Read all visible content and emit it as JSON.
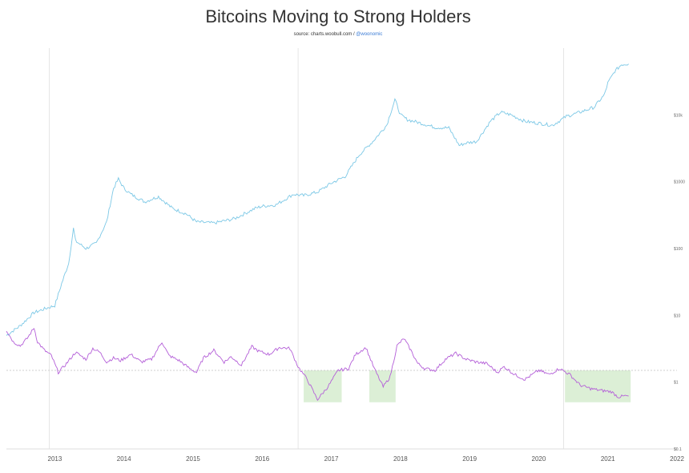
{
  "chart_data": {
    "type": "line",
    "title": "Bitcoins Moving to Strong Holders",
    "subtitle_source": "source: charts.woobull.com / ",
    "subtitle_handle": "@woonomic",
    "x_ticks": [
      "2013",
      "2014",
      "2015",
      "2016",
      "2017",
      "2018",
      "2019",
      "2020",
      "2021",
      "2022"
    ],
    "y_ticks_right": [
      {
        "label": "$10k",
        "value": 10000
      },
      {
        "label": "$1000",
        "value": 1000
      },
      {
        "label": "$100",
        "value": 100
      },
      {
        "label": "$10",
        "value": 10
      },
      {
        "label": "$1",
        "value": 1
      },
      {
        "label": "$0.1",
        "value": 0.1
      }
    ],
    "y_scale": "log",
    "ylim": [
      0.1,
      100000
    ],
    "xlim": [
      2012.3,
      2022.0
    ],
    "cycle_marker_years": [
      2012.92,
      2016.52,
      2020.36
    ],
    "grid": false,
    "colors": {
      "price": "#7cc8e6",
      "indicator": "#b45fd8",
      "highlight": "#dcefd6",
      "vline": "#e6e6e6",
      "dotted": "#c0c0c0"
    },
    "series": [
      {
        "role": "price",
        "x": [
          2012.3,
          2012.5,
          2012.7,
          2012.9,
          2013.0,
          2013.1,
          2013.2,
          2013.27,
          2013.3,
          2013.45,
          2013.6,
          2013.75,
          2013.85,
          2013.92,
          2014.0,
          2014.1,
          2014.3,
          2014.5,
          2014.7,
          2014.9,
          2015.05,
          2015.3,
          2015.6,
          2015.9,
          2016.0,
          2016.2,
          2016.45,
          2016.6,
          2016.8,
          2017.0,
          2017.2,
          2017.4,
          2017.6,
          2017.8,
          2017.92,
          2018.0,
          2018.1,
          2018.3,
          2018.5,
          2018.7,
          2018.85,
          2018.95,
          2019.1,
          2019.3,
          2019.45,
          2019.6,
          2019.8,
          2020.0,
          2020.2,
          2020.4,
          2020.6,
          2020.8,
          2020.95,
          2021.0,
          2021.1,
          2021.2,
          2021.3
        ],
        "y": [
          5,
          7,
          11,
          13,
          14,
          30,
          60,
          200,
          130,
          100,
          120,
          250,
          800,
          1100,
          800,
          650,
          500,
          600,
          400,
          330,
          250,
          240,
          280,
          400,
          430,
          450,
          650,
          620,
          700,
          950,
          1200,
          2500,
          4000,
          7000,
          17000,
          10000,
          8500,
          7500,
          6500,
          6400,
          3500,
          3800,
          4000,
          8000,
          11000,
          10000,
          8000,
          7500,
          7000,
          9500,
          11000,
          13000,
          20000,
          30000,
          45000,
          57000,
          58000
        ]
      },
      {
        "role": "indicator",
        "x": [
          2012.3,
          2012.4,
          2012.5,
          2012.6,
          2012.7,
          2012.75,
          2012.85,
          2012.95,
          2013.05,
          2013.15,
          2013.3,
          2013.45,
          2013.55,
          2013.65,
          2013.75,
          2013.85,
          2013.95,
          2014.1,
          2014.25,
          2014.4,
          2014.55,
          2014.65,
          2014.8,
          2014.95,
          2015.05,
          2015.15,
          2015.3,
          2015.45,
          2015.55,
          2015.7,
          2015.85,
          2015.95,
          2016.1,
          2016.25,
          2016.4,
          2016.52,
          2016.65,
          2016.8,
          2016.95,
          2017.1,
          2017.25,
          2017.35,
          2017.5,
          2017.62,
          2017.75,
          2017.85,
          2017.95,
          2018.05,
          2018.15,
          2018.25,
          2018.35,
          2018.5,
          2018.65,
          2018.8,
          2018.95,
          2019.1,
          2019.25,
          2019.4,
          2019.5,
          2019.65,
          2019.8,
          2020.0,
          2020.15,
          2020.3,
          2020.45,
          2020.6,
          2020.75,
          2020.9,
          2021.05,
          2021.15,
          2021.25,
          2021.3
        ],
        "y": [
          6,
          4,
          3.5,
          4.5,
          6.5,
          4,
          3,
          2.5,
          1.4,
          1.8,
          2.8,
          2.2,
          3.2,
          2.8,
          2,
          2.3,
          2.1,
          2.6,
          2,
          2.2,
          4,
          2.5,
          2.1,
          1.6,
          1.4,
          2.3,
          3,
          2,
          2.4,
          1.8,
          3.4,
          2.9,
          2.6,
          3.3,
          3.2,
          1.7,
          1.1,
          0.55,
          0.85,
          1.5,
          1.6,
          2.6,
          3.3,
          1.6,
          0.85,
          1.2,
          3.5,
          4.5,
          3,
          1.9,
          1.6,
          1.5,
          2.2,
          2.7,
          2.2,
          2.0,
          1.9,
          1.4,
          1.7,
          1.3,
          1.1,
          1.5,
          1.3,
          1.6,
          1.3,
          0.9,
          0.8,
          0.75,
          0.72,
          0.6,
          0.62,
          0.62
        ]
      }
    ],
    "highlight_regions": [
      {
        "x0": 2016.6,
        "x1": 2017.15,
        "y0": 0.5,
        "y1": 1.5
      },
      {
        "x0": 2017.55,
        "x1": 2017.93,
        "y0": 0.5,
        "y1": 1.5
      },
      {
        "x0": 2020.38,
        "x1": 2021.33,
        "y0": 0.5,
        "y1": 1.5
      }
    ],
    "dotted_reference_value": 1.5
  }
}
